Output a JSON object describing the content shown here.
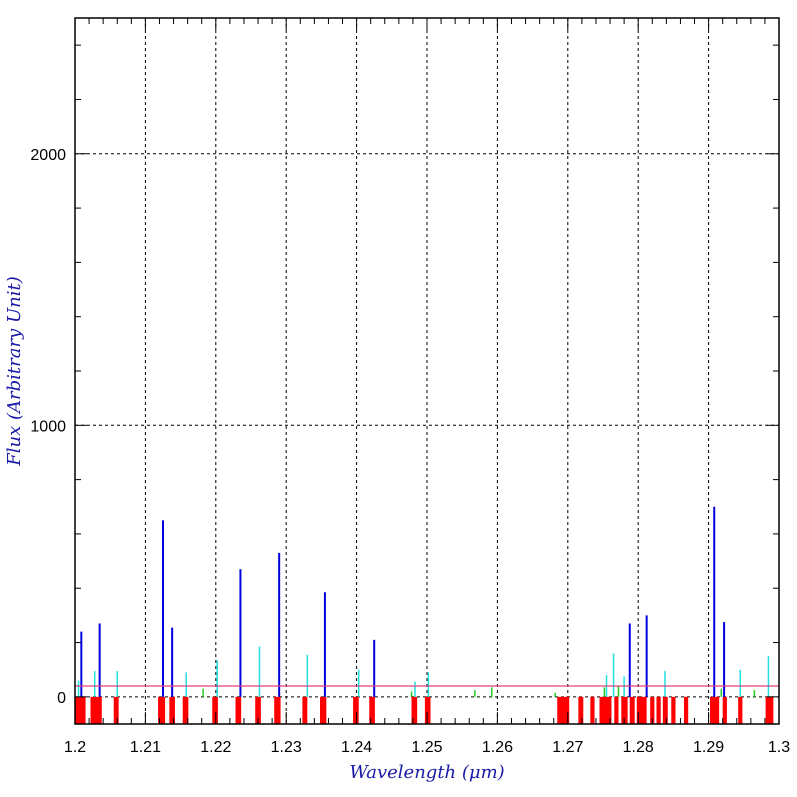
{
  "chart_data": {
    "type": "bar",
    "title": "",
    "xlabel": "Wavelength (μm)",
    "ylabel": "Flux (Arbitrary Unit)",
    "xlim": [
      1.2,
      1.3
    ],
    "ylim": [
      -100,
      2500
    ],
    "x_tick_labels": [
      "1.2",
      "1.21",
      "1.22",
      "1.23",
      "1.24",
      "1.25",
      "1.26",
      "1.27",
      "1.28",
      "1.29",
      "1.3"
    ],
    "y_tick_labels": [
      "0",
      "1000",
      "2000"
    ],
    "y_tick_values": [
      0,
      1000,
      2000
    ],
    "grid": true,
    "reference_line": {
      "y": 40,
      "color": "#e0407a"
    },
    "colors": {
      "strong": "#0000dd",
      "medium": "#22e0e0",
      "weak": "#22cc22",
      "band": "#ff0000",
      "axis_title": "#1a1aa8"
    },
    "series": [
      {
        "values": [
          [
            1.2009,
            240
          ],
          [
            1.2035,
            270
          ],
          [
            1.2125,
            650
          ],
          [
            1.2138,
            255
          ],
          [
            1.2235,
            470
          ],
          [
            1.229,
            530
          ],
          [
            1.2355,
            385
          ],
          [
            1.2425,
            210
          ],
          [
            1.2788,
            270
          ],
          [
            1.2812,
            300
          ],
          [
            1.2908,
            700
          ],
          [
            1.2922,
            275
          ]
        ]
      },
      {
        "values": [
          [
            1.2005,
            60
          ],
          [
            1.2028,
            95
          ],
          [
            1.206,
            95
          ],
          [
            1.2158,
            90
          ],
          [
            1.2202,
            135
          ],
          [
            1.2262,
            185
          ],
          [
            1.233,
            155
          ],
          [
            1.2403,
            100
          ],
          [
            1.2483,
            55
          ],
          [
            1.2502,
            90
          ],
          [
            1.2755,
            80
          ],
          [
            1.2765,
            160
          ],
          [
            1.278,
            75
          ],
          [
            1.2838,
            95
          ],
          [
            1.2945,
            100
          ],
          [
            1.2985,
            150
          ]
        ]
      },
      {
        "values": [
          [
            1.2182,
            30
          ],
          [
            1.2478,
            20
          ],
          [
            1.2568,
            25
          ],
          [
            1.2592,
            35
          ],
          [
            1.2682,
            15
          ],
          [
            1.2752,
            35
          ],
          [
            1.2772,
            40
          ],
          [
            1.2918,
            30
          ],
          [
            1.2965,
            25
          ]
        ]
      }
    ],
    "band_ranges": [
      [
        1.2,
        1.2015
      ],
      [
        1.2022,
        1.2038
      ],
      [
        1.2055,
        1.2062
      ],
      [
        1.2118,
        1.2128
      ],
      [
        1.2134,
        1.2142
      ],
      [
        1.2153,
        1.2161
      ],
      [
        1.2195,
        1.2203
      ],
      [
        1.2228,
        1.2236
      ],
      [
        1.2256,
        1.2264
      ],
      [
        1.2283,
        1.2292
      ],
      [
        1.2323,
        1.233
      ],
      [
        1.2348,
        1.2357
      ],
      [
        1.2395,
        1.2403
      ],
      [
        1.2418,
        1.2426
      ],
      [
        1.2478,
        1.2486
      ],
      [
        1.2497,
        1.2505
      ],
      [
        1.2685,
        1.2702
      ],
      [
        1.2715,
        1.2722
      ],
      [
        1.2732,
        1.2738
      ],
      [
        1.2745,
        1.2762
      ],
      [
        1.2766,
        1.2772
      ],
      [
        1.2776,
        1.2785
      ],
      [
        1.2788,
        1.2795
      ],
      [
        1.2798,
        1.2812
      ],
      [
        1.2817,
        1.2823
      ],
      [
        1.2826,
        1.2832
      ],
      [
        1.2835,
        1.2842
      ],
      [
        1.2847,
        1.2853
      ],
      [
        1.2865,
        1.2871
      ],
      [
        1.2902,
        1.2915
      ],
      [
        1.292,
        1.2926
      ],
      [
        1.2942,
        1.2948
      ],
      [
        1.2981,
        1.2992
      ]
    ]
  }
}
